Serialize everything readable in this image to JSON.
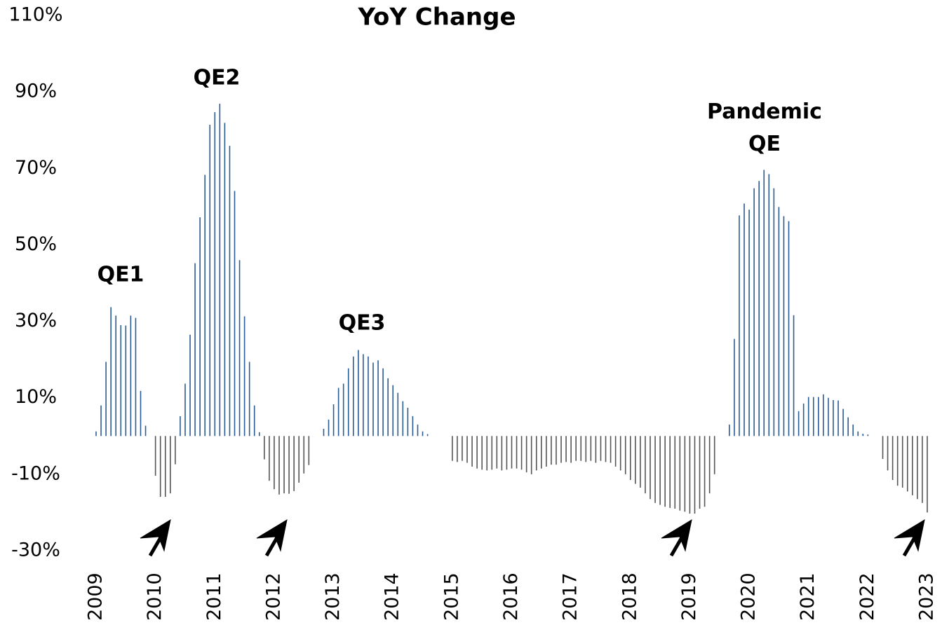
{
  "chart_data": {
    "type": "bar",
    "title": "YoY Change",
    "ylim": [
      -30,
      110
    ],
    "yticks": [
      {
        "value": 110,
        "label": "110%"
      },
      {
        "value": 90,
        "label": "90%"
      },
      {
        "value": 70,
        "label": "70%"
      },
      {
        "value": 50,
        "label": "50%"
      },
      {
        "value": 30,
        "label": "30%"
      },
      {
        "value": 10,
        "label": "10%"
      },
      {
        "value": -10,
        "label": "-10%"
      },
      {
        "value": -30,
        "label": "-30%"
      }
    ],
    "colors": {
      "positive": "#2b5b95",
      "negative": "#555555"
    },
    "annotations": [
      "QE1",
      "QE2",
      "QE3",
      "Pandemic QE"
    ],
    "categories": [
      "2009",
      null,
      null,
      null,
      null,
      null,
      null,
      null,
      null,
      null,
      null,
      null,
      "2010",
      null,
      null,
      null,
      null,
      null,
      null,
      null,
      null,
      null,
      null,
      null,
      "2011",
      null,
      null,
      null,
      null,
      null,
      null,
      null,
      null,
      null,
      null,
      null,
      "2012",
      null,
      null,
      null,
      null,
      null,
      null,
      null,
      null,
      null,
      null,
      null,
      "2013",
      null,
      null,
      null,
      null,
      null,
      null,
      null,
      null,
      null,
      null,
      null,
      "2014",
      null,
      null,
      null,
      null,
      null,
      null,
      null,
      null,
      null,
      null,
      null,
      "2015",
      null,
      null,
      null,
      null,
      null,
      null,
      null,
      null,
      null,
      null,
      null,
      "2016",
      null,
      null,
      null,
      null,
      null,
      null,
      null,
      null,
      null,
      null,
      null,
      "2017",
      null,
      null,
      null,
      null,
      null,
      null,
      null,
      null,
      null,
      null,
      null,
      "2018",
      null,
      null,
      null,
      null,
      null,
      null,
      null,
      null,
      null,
      null,
      null,
      "2019",
      null,
      null,
      null,
      null,
      null,
      null,
      null,
      null,
      null,
      null,
      null,
      "2020",
      null,
      null,
      null,
      null,
      null,
      null,
      null,
      null,
      null,
      null,
      null,
      "2021",
      null,
      null,
      null,
      null,
      null,
      null,
      null,
      null,
      null,
      null,
      null,
      "2022",
      null,
      null,
      null,
      null,
      null,
      null,
      null,
      null,
      null,
      null,
      null,
      "2023"
    ],
    "values": [
      1.2,
      8,
      19.4,
      33.7,
      31.5,
      29,
      28.9,
      31.5,
      30.9,
      11.8,
      2.7,
      null,
      -10.4,
      -15.9,
      -15.9,
      -15,
      -7.4,
      5.2,
      13.7,
      26.5,
      45.2,
      57.2,
      68.3,
      81.4,
      84.7,
      86.9,
      81.9,
      75.9,
      64.1,
      46,
      31.3,
      19.4,
      8,
      1,
      -6.1,
      -11.7,
      -13.9,
      -15.3,
      -15,
      -15.1,
      -14.4,
      -12.2,
      -9.8,
      -7.6,
      null,
      null,
      1.9,
      4.3,
      8.3,
      12.6,
      13.7,
      17.7,
      20.8,
      22.5,
      21.4,
      20.8,
      19.2,
      19.8,
      17.7,
      15.1,
      13.3,
      11.3,
      9.1,
      7.4,
      5.2,
      3,
      1.2,
      0.5,
      null,
      null,
      null,
      null,
      -6.5,
      -6.8,
      -6.5,
      -7,
      -8,
      -8.5,
      -8.8,
      -9,
      -8.8,
      -8.5,
      -9,
      -8.8,
      -8.5,
      -8.5,
      -8.8,
      -9.5,
      -10,
      -9,
      -8.5,
      -8,
      -7.5,
      -7.5,
      -7,
      -6.8,
      -7,
      -6.5,
      -6.5,
      -6.8,
      -6.5,
      -7,
      -6.5,
      -6.8,
      -7,
      -8,
      -9,
      -10,
      -11.5,
      -12.5,
      -13.5,
      -15,
      -16.5,
      -17.5,
      -18,
      -18.5,
      -18.8,
      -19,
      -19.5,
      -19.8,
      -20.3,
      -20.3,
      -19,
      -18.5,
      -15,
      -10,
      null,
      null,
      3,
      25.4,
      57.7,
      60.8,
      59.2,
      64.8,
      66.7,
      69.6,
      68.5,
      64.8,
      59.9,
      57.5,
      56.2,
      31.6,
      6.5,
      8.5,
      10.2,
      10.2,
      10.2,
      10.9,
      10,
      9.4,
      9.3,
      7.1,
      4.9,
      3,
      1.2,
      0.6,
      0.4,
      null,
      null,
      -6,
      -9,
      -11.5,
      -13,
      -13.5,
      -14.5,
      -15.5,
      -16.5,
      -17.5,
      -20
    ]
  }
}
